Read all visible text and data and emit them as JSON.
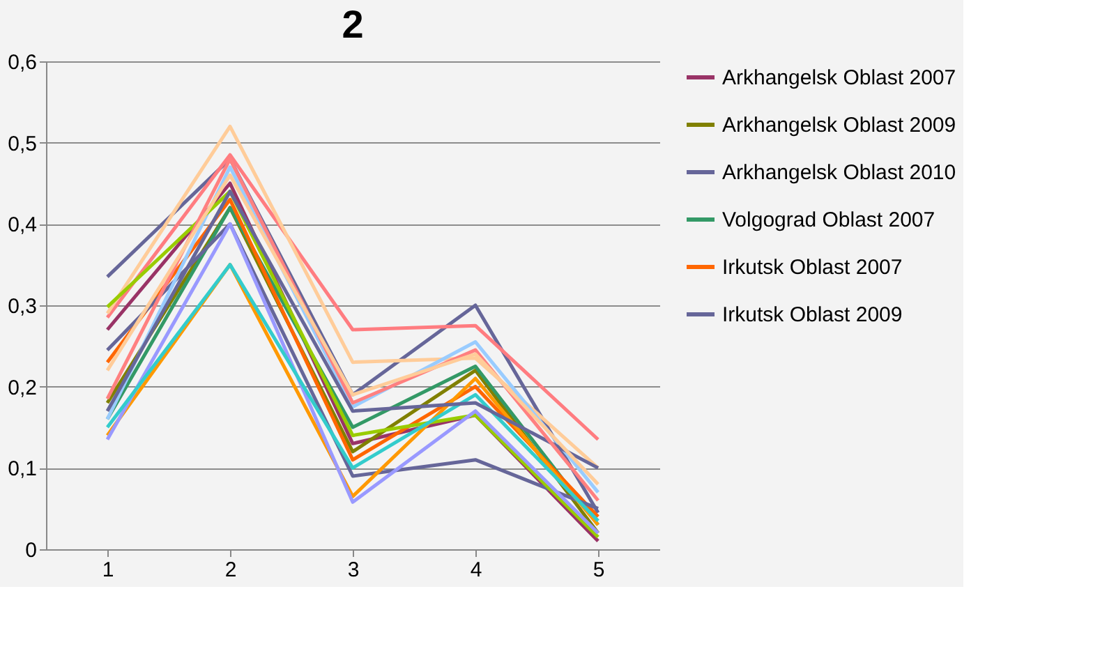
{
  "chart_data": {
    "type": "line",
    "title": "2",
    "categories": [
      "1",
      "2",
      "3",
      "4",
      "5"
    ],
    "ylim": [
      0,
      0.6
    ],
    "yticks": [
      0,
      {
        "value": 0.1,
        "label": "0,1"
      },
      {
        "value": 0.2,
        "label": "0,2"
      },
      {
        "value": 0.3,
        "label": "0,3"
      },
      {
        "value": 0.4,
        "label": "0,4"
      },
      {
        "value": 0.5,
        "label": "0,5"
      },
      {
        "value": 0.6,
        "label": "0,6"
      }
    ],
    "grid": "y",
    "legend": "right",
    "marker": "none",
    "line_style": "solid",
    "series": [
      {
        "name": "Arkhangelsk Oblast 2007",
        "color": "#993366",
        "values": [
          0.27,
          0.45,
          0.13,
          0.165,
          0.01
        ]
      },
      {
        "name": "Arkhangelsk Oblast 2009",
        "color": "#808000",
        "values": [
          0.18,
          0.42,
          0.12,
          0.22,
          0.02
        ]
      },
      {
        "name": "Arkhangelsk Oblast 2010",
        "color": "#666699",
        "values": [
          0.335,
          0.48,
          0.19,
          0.3,
          0.045
        ]
      },
      {
        "name": "Volgograd Oblast 2007",
        "color": "#339966",
        "values": [
          0.16,
          0.42,
          0.15,
          0.225,
          0.03
        ]
      },
      {
        "name": "Irkutsk Oblast 2007",
        "color": "#ff6600",
        "values": [
          0.23,
          0.43,
          0.11,
          0.2,
          0.04
        ]
      },
      {
        "name": "Irkutsk Oblast 2009",
        "color": "#666699",
        "values": [
          0.245,
          0.4,
          0.09,
          0.11,
          0.05
        ]
      },
      {
        "color": "#ff7c80",
        "values": [
          0.285,
          0.485,
          0.27,
          0.275,
          0.135
        ]
      },
      {
        "color": "#ffcc99",
        "values": [
          0.29,
          0.52,
          0.23,
          0.235,
          0.1
        ]
      },
      {
        "color": "#99ccff",
        "values": [
          0.16,
          0.47,
          0.175,
          0.255,
          0.07
        ]
      },
      {
        "color": "#99cc00",
        "values": [
          0.298,
          0.44,
          0.14,
          0.165,
          0.015
        ]
      },
      {
        "color": "#ff9900",
        "values": [
          0.14,
          0.35,
          0.065,
          0.21,
          0.03
        ]
      },
      {
        "color": "#9999ff",
        "values": [
          0.135,
          0.4,
          0.058,
          0.17,
          0.02
        ]
      },
      {
        "color": "#33cccc",
        "values": [
          0.15,
          0.35,
          0.1,
          0.19,
          0.035
        ]
      },
      {
        "color": "#666699",
        "values": [
          0.17,
          0.44,
          0.17,
          0.18,
          0.1
        ]
      },
      {
        "color": "#ff8080",
        "values": [
          0.185,
          0.48,
          0.18,
          0.245,
          0.06
        ]
      },
      {
        "color": "#ffcc99",
        "values": [
          0.22,
          0.46,
          0.19,
          0.24,
          0.08
        ]
      }
    ]
  }
}
